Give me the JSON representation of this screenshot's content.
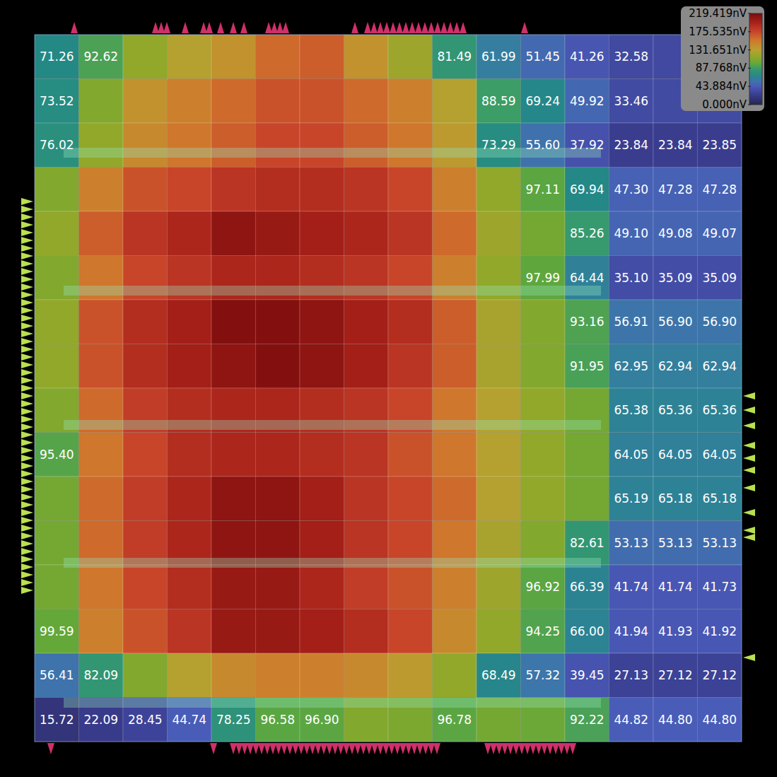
{
  "chart_data": {
    "type": "heatmap",
    "data_labels": true,
    "tick_labels": false,
    "values": [
      [
        71.26,
        92.62,
        115,
        130,
        140,
        160,
        165,
        140,
        120,
        81.49,
        61.99,
        51.45,
        41.26,
        32.58,
        32.57,
        32.57
      ],
      [
        73.52,
        110,
        140,
        150,
        160,
        170,
        170,
        160,
        150,
        130,
        88.59,
        69.24,
        49.92,
        33.46,
        33.45,
        33.45
      ],
      [
        76.02,
        115,
        145,
        155,
        165,
        175,
        175,
        165,
        155,
        135,
        73.29,
        55.6,
        37.92,
        23.84,
        23.84,
        23.85
      ],
      [
        110,
        150,
        170,
        175,
        185,
        190,
        190,
        185,
        175,
        150,
        115,
        97.11,
        69.94,
        47.3,
        47.28,
        47.28
      ],
      [
        115,
        165,
        185,
        195,
        210,
        205,
        200,
        195,
        185,
        160,
        120,
        105,
        85.26,
        49.1,
        49.08,
        49.07
      ],
      [
        110,
        155,
        175,
        185,
        195,
        195,
        190,
        185,
        175,
        150,
        115,
        97.99,
        64.44,
        35.1,
        35.09,
        35.09
      ],
      [
        115,
        170,
        190,
        200,
        215,
        215,
        210,
        200,
        190,
        165,
        125,
        110,
        93.16,
        56.91,
        56.9,
        56.9
      ],
      [
        115,
        170,
        190,
        200,
        210,
        215,
        210,
        200,
        185,
        165,
        125,
        110,
        91.95,
        62.95,
        62.94,
        62.94
      ],
      [
        110,
        160,
        180,
        190,
        195,
        195,
        190,
        185,
        175,
        155,
        130,
        115,
        105,
        65.38,
        65.36,
        65.36
      ],
      [
        95.4,
        155,
        175,
        190,
        195,
        195,
        190,
        185,
        170,
        155,
        130,
        115,
        105,
        64.05,
        64.05,
        64.05
      ],
      [
        105,
        160,
        180,
        195,
        210,
        210,
        200,
        185,
        175,
        160,
        130,
        115,
        105,
        65.19,
        65.18,
        65.18
      ],
      [
        105,
        160,
        180,
        195,
        210,
        210,
        200,
        185,
        175,
        155,
        125,
        110,
        82.61,
        53.13,
        53.13,
        53.13
      ],
      [
        105,
        155,
        175,
        190,
        205,
        205,
        195,
        180,
        170,
        150,
        120,
        96.92,
        66.39,
        41.74,
        41.74,
        41.73
      ],
      [
        99.59,
        150,
        170,
        185,
        205,
        205,
        200,
        190,
        175,
        145,
        115,
        94.25,
        66.0,
        41.94,
        41.93,
        41.92
      ],
      [
        56.41,
        82.09,
        110,
        130,
        145,
        150,
        150,
        145,
        135,
        115,
        68.49,
        57.32,
        39.45,
        27.13,
        27.12,
        27.12
      ],
      [
        15.72,
        22.09,
        28.45,
        44.74,
        78.25,
        96.58,
        96.9,
        110,
        108,
        96.78,
        105,
        102,
        92.22,
        44.82,
        44.8,
        44.8
      ]
    ],
    "value_labels": [
      [
        "71.26",
        "92.62",
        null,
        null,
        null,
        null,
        null,
        null,
        null,
        "81.49",
        "61.99",
        "51.45",
        "41.26",
        "32.58",
        null,
        null
      ],
      [
        "73.52",
        null,
        null,
        null,
        null,
        null,
        null,
        null,
        null,
        null,
        "88.59",
        "69.24",
        "49.92",
        "33.46",
        null,
        null
      ],
      [
        "76.02",
        null,
        null,
        null,
        null,
        null,
        null,
        null,
        null,
        null,
        "73.29",
        "55.60",
        "37.92",
        "23.84",
        "23.84",
        "23.85"
      ],
      [
        null,
        null,
        null,
        null,
        null,
        null,
        null,
        null,
        null,
        null,
        null,
        "97.11",
        "69.94",
        "47.30",
        "47.28",
        "47.28"
      ],
      [
        null,
        null,
        null,
        null,
        null,
        null,
        null,
        null,
        null,
        null,
        null,
        null,
        "85.26",
        "49.10",
        "49.08",
        "49.07"
      ],
      [
        null,
        null,
        null,
        null,
        null,
        null,
        null,
        null,
        null,
        null,
        null,
        "97.99",
        "64.44",
        "35.10",
        "35.09",
        "35.09"
      ],
      [
        null,
        null,
        null,
        null,
        null,
        null,
        null,
        null,
        null,
        null,
        null,
        null,
        "93.16",
        "56.91",
        "56.90",
        "56.90"
      ],
      [
        null,
        null,
        null,
        null,
        null,
        null,
        null,
        null,
        null,
        null,
        null,
        null,
        "91.95",
        "62.95",
        "62.94",
        "62.94"
      ],
      [
        null,
        null,
        null,
        null,
        null,
        null,
        null,
        null,
        null,
        null,
        null,
        null,
        null,
        "65.38",
        "65.36",
        "65.36"
      ],
      [
        "95.40",
        null,
        null,
        null,
        null,
        null,
        null,
        null,
        null,
        null,
        null,
        null,
        null,
        "64.05",
        "64.05",
        "64.05"
      ],
      [
        null,
        null,
        null,
        null,
        null,
        null,
        null,
        null,
        null,
        null,
        null,
        null,
        null,
        "65.19",
        "65.18",
        "65.18"
      ],
      [
        null,
        null,
        null,
        null,
        null,
        null,
        null,
        null,
        null,
        null,
        null,
        null,
        "82.61",
        "53.13",
        "53.13",
        "53.13"
      ],
      [
        null,
        null,
        null,
        null,
        null,
        null,
        null,
        null,
        null,
        null,
        null,
        "96.92",
        "66.39",
        "41.74",
        "41.74",
        "41.73"
      ],
      [
        "99.59",
        null,
        null,
        null,
        null,
        null,
        null,
        null,
        null,
        null,
        null,
        "94.25",
        "66.00",
        "41.94",
        "41.93",
        "41.92"
      ],
      [
        "56.41",
        "82.09",
        null,
        null,
        null,
        null,
        null,
        null,
        null,
        null,
        "68.49",
        "57.32",
        "39.45",
        "27.13",
        "27.12",
        "27.12"
      ],
      [
        "15.72",
        "22.09",
        "28.45",
        "44.74",
        "78.25",
        "96.58",
        "96.90",
        null,
        null,
        "96.78",
        null,
        null,
        "92.22",
        "44.82",
        "44.80",
        "44.80"
      ]
    ],
    "color_range": [
      0,
      219.419
    ],
    "color_ticks": [
      {
        "value": 219.419,
        "label": "219.419nV"
      },
      {
        "value": 175.535,
        "label": "175.535nV"
      },
      {
        "value": 131.651,
        "label": "131.651nV"
      },
      {
        "value": 87.768,
        "label": "87.768nV"
      },
      {
        "value": 43.884,
        "label": "43.884nV"
      },
      {
        "value": 0,
        "label": "0.000nV"
      }
    ]
  }
}
